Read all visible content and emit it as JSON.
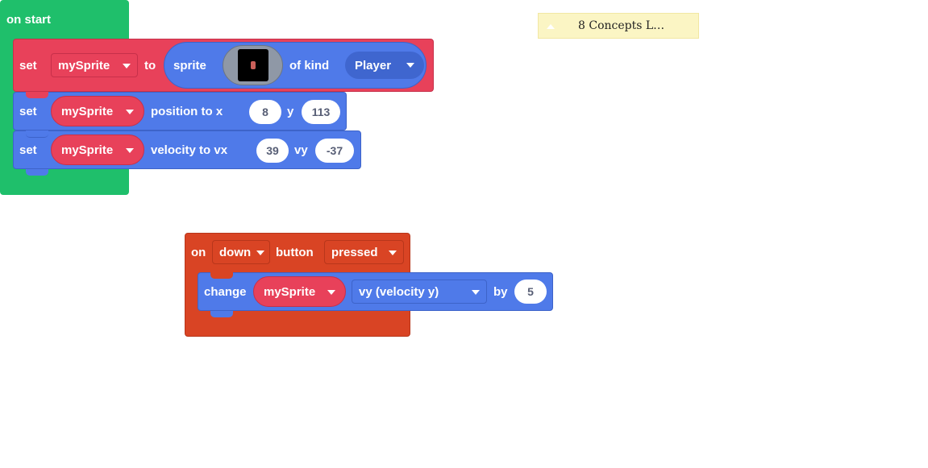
{
  "colors": {
    "event_green": "#1fbf6b",
    "sprite_red": "#e8415a",
    "sprite_blue": "#4f7ae9",
    "controller_orange": "#d94424",
    "comment_yellow": "#fbf5c4"
  },
  "on_start": {
    "label": "on start",
    "set_sprite": {
      "set_label": "set",
      "variable": "mySprite",
      "to_label": "to",
      "sprite_label": "sprite",
      "image_icon": "sprite-image-thumbnail",
      "of_kind_label": "of kind",
      "kind": "Player"
    },
    "set_position": {
      "set_label": "set",
      "variable": "mySprite",
      "property_label": "position to x",
      "x": "8",
      "y_label": "y",
      "y": "113"
    },
    "set_velocity": {
      "set_label": "set",
      "variable": "mySprite",
      "property_label": "velocity to vx",
      "vx": "39",
      "vy_label": "vy",
      "vy": "-37"
    }
  },
  "on_button": {
    "on_label": "on",
    "button": "down",
    "button_label": "button",
    "event": "pressed",
    "change": {
      "change_label": "change",
      "variable": "mySprite",
      "property": "vy (velocity y)",
      "by_label": "by",
      "amount": "5"
    }
  },
  "comment": {
    "text": "8 Concepts L…"
  }
}
